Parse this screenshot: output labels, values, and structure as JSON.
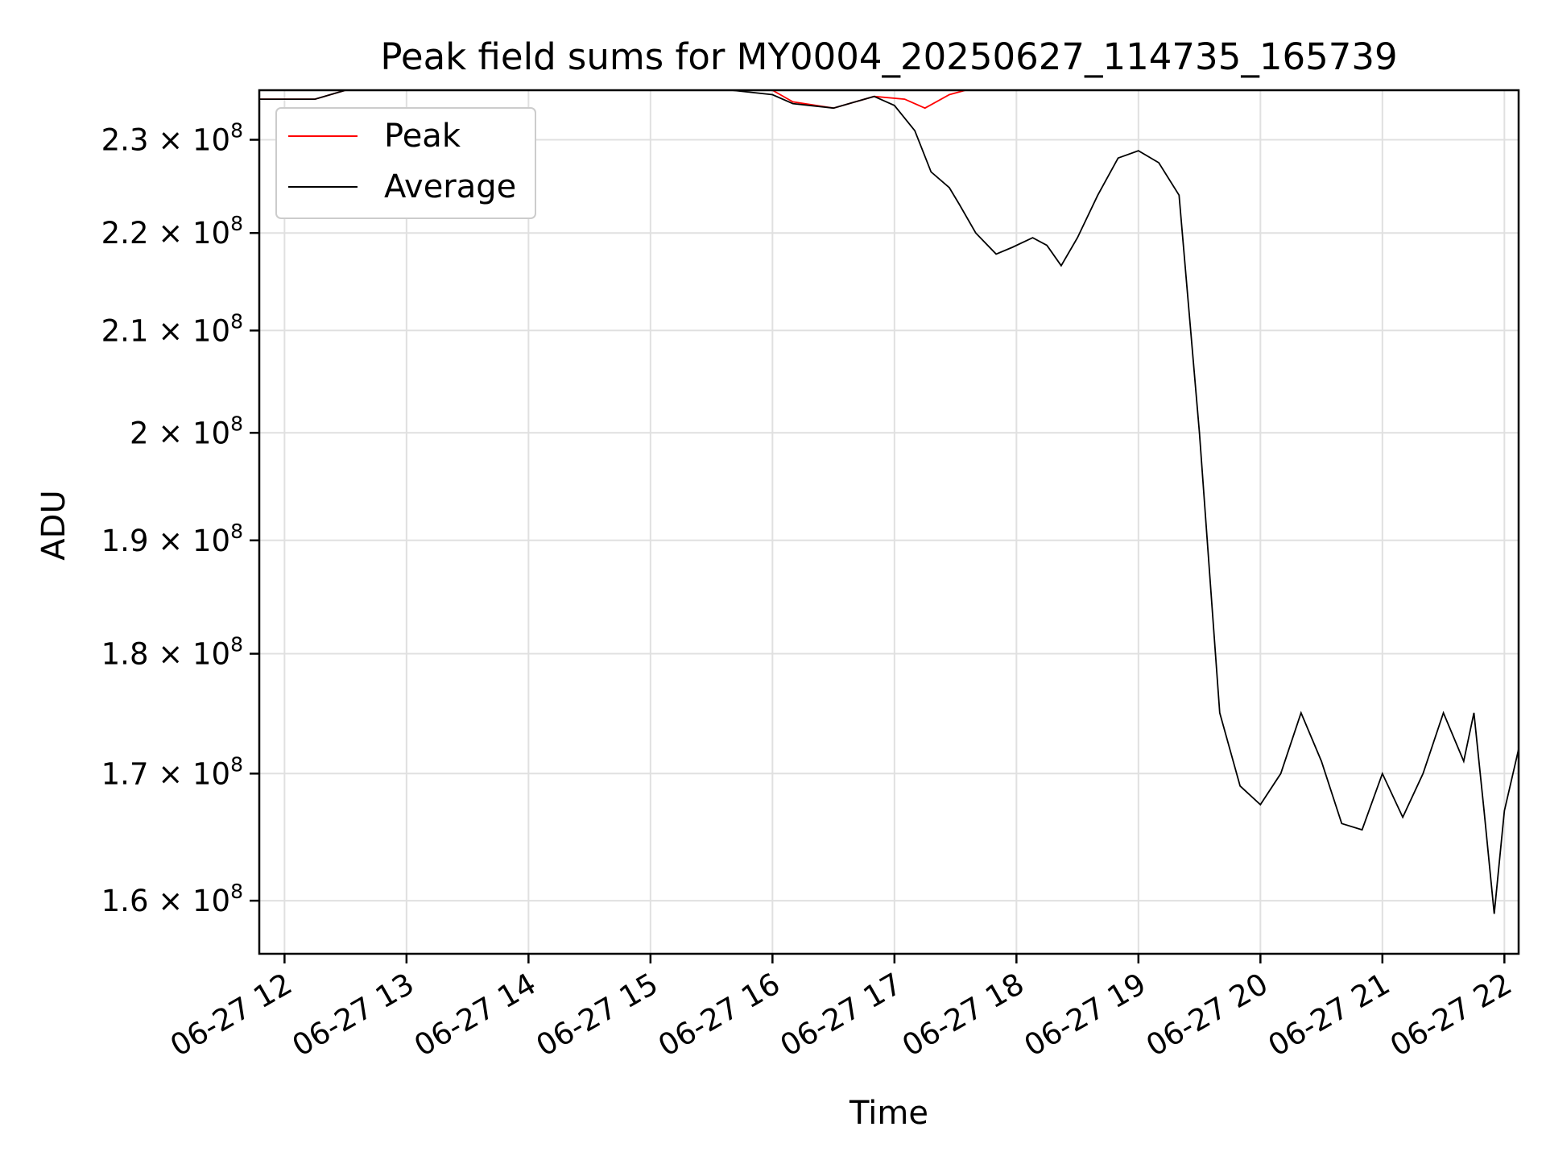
{
  "chart_data": {
    "type": "line",
    "title": "Peak field sums for MY0004_20250627_114735_165739",
    "xlabel": "Time",
    "ylabel": "ADU",
    "yscale": "log",
    "grid": true,
    "legend_position": "top-left",
    "xlim": [
      "2025-06-27 11:47:35",
      "2025-06-27 22:07:00"
    ],
    "ylim": [
      156000000,
      235500000
    ],
    "x_ticks": [
      "06-27 12",
      "06-27 13",
      "06-27 14",
      "06-27 15",
      "06-27 16",
      "06-27 17",
      "06-27 18",
      "06-27 19",
      "06-27 20",
      "06-27 21",
      "06-27 22"
    ],
    "y_ticks": [
      {
        "value": 160000000,
        "mantissa": "1.6",
        "base": "10",
        "exponent": "8"
      },
      {
        "value": 170000000,
        "mantissa": "1.7",
        "base": "10",
        "exponent": "8"
      },
      {
        "value": 180000000,
        "mantissa": "1.8",
        "base": "10",
        "exponent": "8"
      },
      {
        "value": 190000000,
        "mantissa": "1.9",
        "base": "10",
        "exponent": "8"
      },
      {
        "value": 200000000,
        "mantissa": "2",
        "base": "10",
        "exponent": "8"
      },
      {
        "value": 210000000,
        "mantissa": "2.1",
        "base": "10",
        "exponent": "8"
      },
      {
        "value": 220000000,
        "mantissa": "2.2",
        "base": "10",
        "exponent": "8"
      },
      {
        "value": 230000000,
        "mantissa": "2.3",
        "base": "10",
        "exponent": "8"
      }
    ],
    "series": [
      {
        "name": "Peak",
        "color": "#ff0000",
        "x": [
          "2025-06-27 11:47:35",
          "2025-06-27 12:15:00",
          "2025-06-27 12:30:00",
          "2025-06-27 13:00:00",
          "2025-06-27 14:00:00",
          "2025-06-27 15:00:00",
          "2025-06-27 15:40:00",
          "2025-06-27 16:00:00",
          "2025-06-27 16:10:00",
          "2025-06-27 16:30:00",
          "2025-06-27 16:50:00",
          "2025-06-27 17:05:00",
          "2025-06-27 17:15:00",
          "2025-06-27 17:27:00",
          "2025-06-27 17:35:00",
          "2025-06-27 17:42:00",
          "2025-06-27 17:48:00",
          "2025-06-27 17:58:00",
          "2025-06-27 18:08:00",
          "2025-06-27 18:15:00",
          "2025-06-27 18:22:00",
          "2025-06-27 18:30:00",
          "2025-06-27 18:38:00",
          "2025-06-27 18:45:00",
          "2025-06-27 18:50:00",
          "2025-06-27 19:00:00",
          "2025-06-27 19:05:00",
          "2025-06-27 19:10:00",
          "2025-06-27 19:13:00",
          "2025-06-27 19:20:00",
          "2025-06-27 19:27:00",
          "2025-06-27 19:35:00",
          "2025-06-27 19:45:00",
          "2025-06-27 19:50:00",
          "2025-06-27 19:55:00",
          "2025-06-27 20:00:00",
          "2025-06-27 20:05:00",
          "2025-06-27 20:10:00",
          "2025-06-27 20:20:00",
          "2025-06-27 20:30:00",
          "2025-06-27 20:40:00",
          "2025-06-27 20:45:00",
          "2025-06-27 20:50:00",
          "2025-06-27 21:00:00",
          "2025-06-27 21:05:00",
          "2025-06-27 21:10:00",
          "2025-06-27 21:15:00",
          "2025-06-27 21:20:00",
          "2025-06-27 21:25:00",
          "2025-06-27 21:30:00",
          "2025-06-27 21:35:00",
          "2025-06-27 21:40:00",
          "2025-06-27 21:45:00",
          "2025-06-27 21:50:00",
          "2025-06-27 21:55:00",
          "2025-06-27 22:00:00",
          "2025-06-27 22:02:00",
          "2025-06-27 22:07:00"
        ],
        "y": [
          234500000,
          234500000,
          235500000,
          235500000,
          235500000,
          235500000,
          235500000,
          235500000,
          234200000,
          233500000,
          234800000,
          234500000,
          233500000,
          235000000,
          235500000,
          235500000,
          235500000,
          235500000,
          235500000,
          235500000,
          235500000,
          235500000,
          235500000,
          235500000,
          235500000,
          235500000,
          235500000,
          235500000,
          235500000,
          235500000,
          235500000,
          235500000,
          235500000,
          235500000,
          235500000,
          235500000,
          235500000,
          235500000,
          235500000,
          235500000,
          235500000,
          235500000,
          235500000,
          235500000,
          235500000,
          235500000,
          235500000,
          235500000,
          235500000,
          235500000,
          235500000,
          235500000,
          235500000,
          235500000,
          235500000,
          235500000,
          235500000,
          235500000
        ]
      },
      {
        "name": "Average",
        "color": "#000000",
        "x": [
          "2025-06-27 11:47:35",
          "2025-06-27 12:15:00",
          "2025-06-27 12:30:00",
          "2025-06-27 15:00:00",
          "2025-06-27 15:40:00",
          "2025-06-27 16:00:00",
          "2025-06-27 16:10:00",
          "2025-06-27 16:30:00",
          "2025-06-27 16:50:00",
          "2025-06-27 17:00:00",
          "2025-06-27 17:10:00",
          "2025-06-27 17:18:00",
          "2025-06-27 17:27:00",
          "2025-06-27 17:32:00",
          "2025-06-27 17:40:00",
          "2025-06-27 17:50:00",
          "2025-06-27 17:58:00",
          "2025-06-27 18:08:00",
          "2025-06-27 18:15:00",
          "2025-06-27 18:22:00",
          "2025-06-27 18:30:00",
          "2025-06-27 18:40:00",
          "2025-06-27 18:50:00",
          "2025-06-27 19:00:00",
          "2025-06-27 19:10:00",
          "2025-06-27 19:20:00",
          "2025-06-27 19:30:00",
          "2025-06-27 19:40:00",
          "2025-06-27 19:50:00",
          "2025-06-27 20:00:00",
          "2025-06-27 20:10:00",
          "2025-06-27 20:20:00",
          "2025-06-27 20:30:00",
          "2025-06-27 20:40:00",
          "2025-06-27 20:50:00",
          "2025-06-27 21:00:00",
          "2025-06-27 21:10:00",
          "2025-06-27 21:20:00",
          "2025-06-27 21:30:00",
          "2025-06-27 21:40:00",
          "2025-06-27 21:45:00",
          "2025-06-27 21:50:00",
          "2025-06-27 21:55:00",
          "2025-06-27 22:00:00",
          "2025-06-27 22:07:00"
        ],
        "y": [
          234500000,
          234500000,
          235500000,
          235500000,
          235500000,
          235000000,
          234000000,
          233500000,
          234800000,
          233800000,
          231000000,
          226500000,
          224800000,
          223000000,
          220000000,
          217800000,
          218500000,
          219500000,
          218700000,
          216600000,
          219500000,
          224000000,
          228000000,
          228800000,
          227500000,
          224000000,
          200000000,
          175000000,
          169000000,
          167500000,
          170000000,
          175000000,
          171000000,
          166000000,
          165500000,
          170000000,
          166500000,
          170000000,
          175000000,
          171000000,
          175000000,
          167000000,
          159000000,
          167000000,
          172000000
        ]
      }
    ]
  }
}
